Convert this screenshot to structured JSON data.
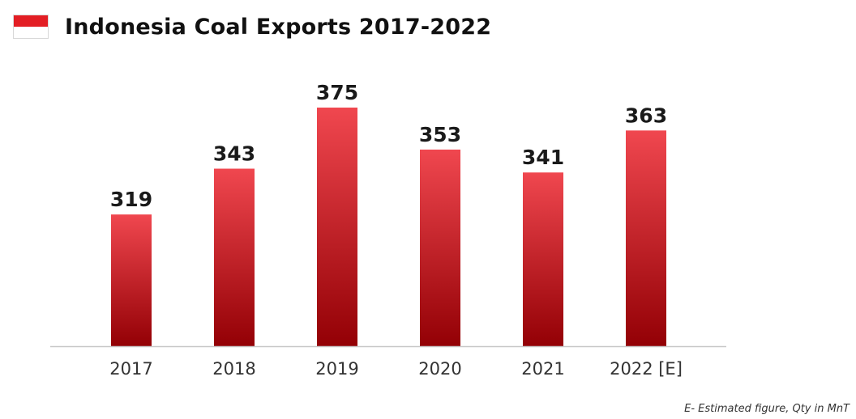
{
  "header": {
    "title": "Indonesia Coal Exports 2017-2022",
    "flag_icon": "indonesia-flag-icon"
  },
  "footnote": "E- Estimated figure, Qty in MnT",
  "colors": {
    "bar_top": "#f0474f",
    "bar_bottom": "#930005",
    "axis": "#c8c8c8",
    "value_label": "#1a1a1a",
    "tick_label": "#333333"
  },
  "chart_data": {
    "type": "bar",
    "title": "Indonesia Coal Exports 2017-2022",
    "categories": [
      "2017",
      "2018",
      "2019",
      "2020",
      "2021",
      "2022 [E]"
    ],
    "values": [
      319,
      343,
      375,
      353,
      341,
      363
    ],
    "data_labels": [
      "319",
      "343",
      "375",
      "353",
      "341",
      "363"
    ],
    "xlabel": "",
    "ylabel": "",
    "ylim": [
      250,
      375
    ],
    "grid": false,
    "legend": "none"
  }
}
